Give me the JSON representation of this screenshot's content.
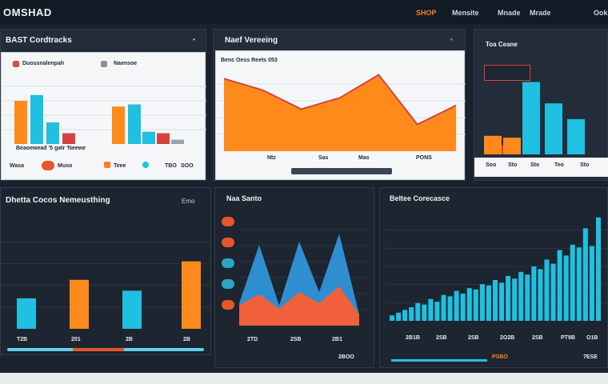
{
  "app": {
    "title": "OMSHAD"
  },
  "nav": [
    "SHOP",
    "Mensite",
    "Mnade",
    "Mrade",
    "Ook"
  ],
  "colors": {
    "orange": "#ff8a1c",
    "cyan": "#1fc0e0",
    "red": "#d6423e",
    "blue": "#2f8ecf",
    "bg": "#1a222e"
  },
  "panel1": {
    "title": "BAST Cordtracks",
    "menu": "•",
    "legend": [
      "Duossnalenpah",
      "Naensoe"
    ],
    "axis_caption": "Beaoewead '5 gatr 'Neewe",
    "footer": {
      "left": "Wasa",
      "mid": "Muso",
      "right1": "Teee",
      "right2": "TBO",
      "right3": "SOO"
    }
  },
  "panel2": {
    "title": "Naef Vereeing",
    "menu": "•",
    "chart_title": "Benc Oess Reets 053",
    "xticks": [
      "Ntz",
      "Sas",
      "Mas",
      "PONS"
    ]
  },
  "panel3": {
    "title": "Toa Ceane",
    "xticks": [
      "Soo",
      "Sto",
      "Sto",
      "Teo",
      "Sto"
    ]
  },
  "panel4": {
    "title": "Dhetta Cocos Nemeusthing",
    "menu": "Emo",
    "xticks": [
      "T2B",
      "201",
      "2B",
      "2B"
    ]
  },
  "panel5": {
    "title": "Naa Santo",
    "xticks": [
      "2TD",
      "2SB",
      "2B1"
    ],
    "footer": "2BOO"
  },
  "panel6": {
    "title": "Beltee Corecasce",
    "xticks": [
      "2B1B",
      "2SB",
      "2SB",
      "2O2B",
      "2SB",
      "PT9B",
      "O1B"
    ],
    "footer_left": "PSBO",
    "footer_right": "7ESE"
  },
  "chart_data": [
    {
      "type": "bar",
      "series": [
        {
          "values": [
            60,
            68,
            30,
            15
          ]
        },
        {
          "values": [
            52,
            55,
            17,
            15,
            6
          ]
        }
      ],
      "ylim": [
        0,
        100
      ]
    },
    {
      "type": "area",
      "x": [
        0,
        1,
        2,
        3,
        4,
        5,
        6
      ],
      "values": [
        95,
        80,
        55,
        70,
        100,
        35,
        60
      ],
      "ylim": [
        0,
        110
      ]
    },
    {
      "type": "bar",
      "series": [
        {
          "values": [
            20,
            10
          ]
        },
        {
          "values": [
            18
          ]
        },
        {
          "values": [
            78,
            55,
            38
          ]
        }
      ],
      "ylim": [
        0,
        100
      ]
    },
    {
      "type": "bar",
      "values": [
        28,
        45,
        35,
        62
      ],
      "ylim": [
        0,
        100
      ]
    },
    {
      "type": "area",
      "series": [
        {
          "values": [
            20,
            72,
            18,
            75,
            30,
            82,
            10
          ]
        },
        {
          "values": [
            18,
            28,
            15,
            30,
            20,
            35,
            10
          ]
        }
      ],
      "ylim": [
        0,
        100
      ]
    },
    {
      "type": "bar",
      "values": [
        4,
        6,
        8,
        10,
        13,
        12,
        16,
        14,
        19,
        18,
        22,
        20,
        24,
        23,
        27,
        26,
        30,
        28,
        33,
        31,
        36,
        34,
        40,
        38,
        45,
        42,
        52,
        48,
        56,
        54,
        68,
        55,
        76
      ],
      "ylim": [
        0,
        80
      ]
    }
  ]
}
